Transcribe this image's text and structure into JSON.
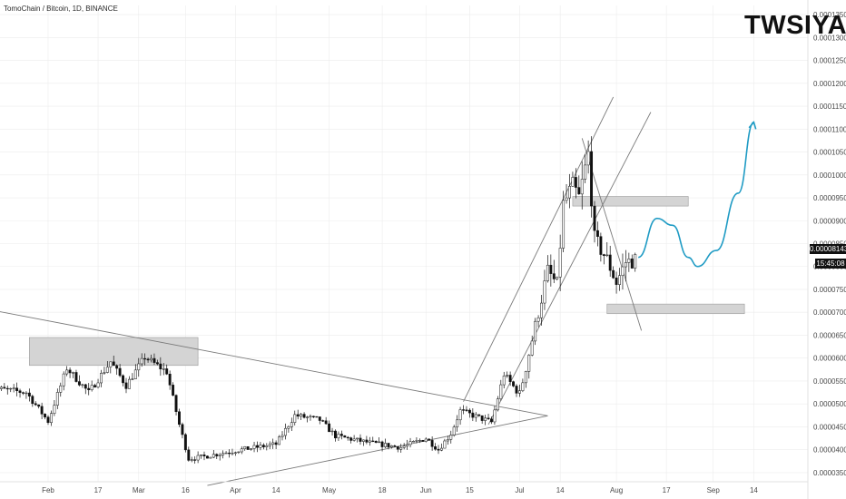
{
  "header": {
    "symbol": "TomoChain / Bitcoin, 1D, BINANCE"
  },
  "brand": {
    "watermark": "TWSIYA"
  },
  "price_tag": {
    "last_price": "0.00008143",
    "countdown": "15:45:08"
  },
  "colors": {
    "bull": "#ffffff",
    "bear": "#111111",
    "wick": "#111111",
    "trendline": "#7a7a7a",
    "zone": "#d4d4d4",
    "projection": "#1f9bc4",
    "grid": "#ececec",
    "axis_text": "#4a4a4a"
  },
  "chart_data": {
    "type": "candlestick",
    "title": "TomoChain / Bitcoin, 1D, BINANCE",
    "ylim": [
      3.3e-05,
      0.000137
    ],
    "y_ticks": [
      "0.00013500",
      "0.00013000",
      "0.00012500",
      "0.00012000",
      "0.00011500",
      "0.00011000",
      "0.00010500",
      "0.00010000",
      "0.00009500",
      "0.00009000",
      "0.00008500",
      "0.00008000",
      "0.00007500",
      "0.00007000",
      "0.00006500",
      "0.00006000",
      "0.00005500",
      "0.00005000",
      "0.00004500",
      "0.00004000",
      "0.00003500"
    ],
    "x_ticks": [
      {
        "label": "Feb",
        "date": "2020-02-01"
      },
      {
        "label": "17",
        "date": "2020-02-17"
      },
      {
        "label": "Mar",
        "date": "2020-03-01"
      },
      {
        "label": "16",
        "date": "2020-03-16"
      },
      {
        "label": "Apr",
        "date": "2020-04-01"
      },
      {
        "label": "14",
        "date": "2020-04-14"
      },
      {
        "label": "May",
        "date": "2020-05-01"
      },
      {
        "label": "18",
        "date": "2020-05-18"
      },
      {
        "label": "Jun",
        "date": "2020-06-01"
      },
      {
        "label": "15",
        "date": "2020-06-15"
      },
      {
        "label": "Jul",
        "date": "2020-07-01"
      },
      {
        "label": "14",
        "date": "2020-07-14"
      },
      {
        "label": "Aug",
        "date": "2020-08-01"
      },
      {
        "label": "17",
        "date": "2020-08-17"
      },
      {
        "label": "Sep",
        "date": "2020-09-01"
      },
      {
        "label": "14",
        "date": "2020-09-14"
      }
    ],
    "candle_start_date": "2020-01-13",
    "candle_end_date": "2020-08-07",
    "price_path": [
      {
        "date": "2020-01-13",
        "price": 5.35e-05
      },
      {
        "date": "2020-01-25",
        "price": 5.25e-05
      },
      {
        "date": "2020-02-01",
        "price": 4.62e-05
      },
      {
        "date": "2020-02-07",
        "price": 5.78e-05
      },
      {
        "date": "2020-02-14",
        "price": 5.25e-05
      },
      {
        "date": "2020-02-21",
        "price": 5.92e-05
      },
      {
        "date": "2020-02-26",
        "price": 5.4e-05
      },
      {
        "date": "2020-03-03",
        "price": 6.02e-05
      },
      {
        "date": "2020-03-10",
        "price": 5.7e-05
      },
      {
        "date": "2020-03-14",
        "price": 4.55e-05
      },
      {
        "date": "2020-03-17",
        "price": 3.8e-05
      },
      {
        "date": "2020-03-22",
        "price": 3.85e-05
      },
      {
        "date": "2020-04-01",
        "price": 3.98e-05
      },
      {
        "date": "2020-04-14",
        "price": 4.12e-05
      },
      {
        "date": "2020-04-20",
        "price": 4.75e-05
      },
      {
        "date": "2020-04-28",
        "price": 4.65e-05
      },
      {
        "date": "2020-05-03",
        "price": 4.3e-05
      },
      {
        "date": "2020-05-14",
        "price": 4.15e-05
      },
      {
        "date": "2020-05-24",
        "price": 4.05e-05
      },
      {
        "date": "2020-06-01",
        "price": 4.25e-05
      },
      {
        "date": "2020-06-05",
        "price": 4e-05
      },
      {
        "date": "2020-06-09",
        "price": 4.35e-05
      },
      {
        "date": "2020-06-12",
        "price": 4.85e-05
      },
      {
        "date": "2020-06-22",
        "price": 4.6e-05
      },
      {
        "date": "2020-06-26",
        "price": 5.65e-05
      },
      {
        "date": "2020-07-01",
        "price": 5.2e-05
      },
      {
        "date": "2020-07-05",
        "price": 6.4e-05
      },
      {
        "date": "2020-07-10",
        "price": 7.9e-05
      },
      {
        "date": "2020-07-13",
        "price": 7.6e-05
      },
      {
        "date": "2020-07-15",
        "price": 9.35e-05
      },
      {
        "date": "2020-07-18",
        "price": 9.75e-05
      },
      {
        "date": "2020-07-20",
        "price": 9.5e-05
      },
      {
        "date": "2020-07-23",
        "price": 0.0001045
      },
      {
        "date": "2020-07-25",
        "price": 8.6e-05
      },
      {
        "date": "2020-07-29",
        "price": 8.15e-05
      },
      {
        "date": "2020-08-01",
        "price": 7.65e-05
      },
      {
        "date": "2020-08-04",
        "price": 8.1e-05
      },
      {
        "date": "2020-08-07",
        "price": 8.14e-05
      }
    ],
    "zones": [
      {
        "name": "resistance-zone-feb",
        "x0": "2020-01-26",
        "x1": "2020-03-20",
        "y0": 5.84e-05,
        "y1": 6.45e-05
      },
      {
        "name": "resistance-zone-jul",
        "x0": "2020-07-18",
        "x1": "2020-08-24",
        "y0": 9.32e-05,
        "y1": 9.53e-05
      },
      {
        "name": "support-zone-aug",
        "x0": "2020-07-29",
        "x1": "2020-09-11",
        "y0": 6.97e-05,
        "y1": 7.18e-05
      }
    ],
    "lines": [
      {
        "name": "descending-trendline",
        "from": {
          "date": "2020-01-13",
          "price": 7.06e-05
        },
        "to": {
          "date": "2020-07-10",
          "price": 4.74e-05
        }
      },
      {
        "name": "ascending-support-line",
        "from": {
          "date": "2020-03-23",
          "price": 3.22e-05
        },
        "to": {
          "date": "2020-07-10",
          "price": 4.74e-05
        }
      },
      {
        "name": "upper-channel-line",
        "from": {
          "date": "2020-06-13",
          "price": 5.05e-05
        },
        "to": {
          "date": "2020-07-31",
          "price": 0.000117
        }
      },
      {
        "name": "lower-channel-line",
        "from": {
          "date": "2020-06-21",
          "price": 4.55e-05
        },
        "to": {
          "date": "2020-08-12",
          "price": 0.0001137
        }
      },
      {
        "name": "falling-diagonal",
        "from": {
          "date": "2020-07-21",
          "price": 0.000108
        },
        "to": {
          "date": "2020-08-09",
          "price": 6.6e-05
        }
      }
    ],
    "projection_path": [
      {
        "date": "2020-08-08",
        "price": 8.2e-05
      },
      {
        "date": "2020-08-14",
        "price": 9.05e-05
      },
      {
        "date": "2020-08-19",
        "price": 8.9e-05
      },
      {
        "date": "2020-08-24",
        "price": 8.2e-05
      },
      {
        "date": "2020-08-27",
        "price": 8e-05
      },
      {
        "date": "2020-09-02",
        "price": 8.35e-05
      },
      {
        "date": "2020-09-09",
        "price": 9.6e-05
      },
      {
        "date": "2020-09-14",
        "price": 0.0001115
      }
    ]
  }
}
